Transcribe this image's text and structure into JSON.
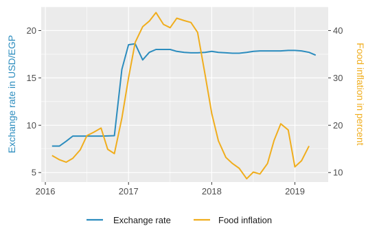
{
  "chart_data": {
    "type": "line",
    "xlim": [
      2015.95,
      2019.4
    ],
    "x_ticks": [
      2016,
      2017,
      2018,
      2019
    ],
    "x_tick_labels": [
      "2016",
      "2017",
      "2018",
      "2019"
    ],
    "y_left": {
      "label": "Exchange rate in USD/EGP",
      "ylim": [
        4,
        22.5
      ],
      "ticks": [
        5,
        10,
        15,
        20
      ],
      "tick_labels": [
        "5",
        "10",
        "15",
        "20"
      ]
    },
    "y_right": {
      "label": "Food inflation in percent",
      "ylim": [
        8,
        45
      ],
      "ticks": [
        10,
        20,
        30,
        40
      ],
      "tick_labels": [
        "10",
        "20",
        "30",
        "40"
      ]
    },
    "grid": true,
    "legend_position": "bottom",
    "series": [
      {
        "name": "Exchange rate",
        "axis": "left",
        "color": "#2b8cbe",
        "x": [
          2016.08,
          2016.17,
          2016.25,
          2016.33,
          2016.42,
          2016.5,
          2016.58,
          2016.67,
          2016.75,
          2016.83,
          2016.92,
          2017.0,
          2017.08,
          2017.17,
          2017.25,
          2017.33,
          2017.42,
          2017.5,
          2017.58,
          2017.67,
          2017.75,
          2017.83,
          2017.92,
          2018.0,
          2018.08,
          2018.17,
          2018.25,
          2018.33,
          2018.42,
          2018.5,
          2018.58,
          2018.67,
          2018.75,
          2018.83,
          2018.92,
          2019.0,
          2019.08,
          2019.17,
          2019.25
        ],
        "values": [
          7.8,
          7.8,
          8.3,
          8.85,
          8.85,
          8.85,
          8.85,
          8.85,
          8.87,
          8.9,
          15.9,
          18.5,
          18.6,
          16.9,
          17.7,
          18.0,
          18.0,
          18.0,
          17.8,
          17.7,
          17.65,
          17.65,
          17.7,
          17.8,
          17.7,
          17.65,
          17.6,
          17.6,
          17.7,
          17.8,
          17.85,
          17.85,
          17.85,
          17.85,
          17.9,
          17.9,
          17.85,
          17.7,
          17.4
        ]
      },
      {
        "name": "Food inflation",
        "axis": "right",
        "color": "#f0ad1c",
        "x": [
          2016.08,
          2016.17,
          2016.25,
          2016.33,
          2016.42,
          2016.5,
          2016.58,
          2016.67,
          2016.75,
          2016.83,
          2016.92,
          2017.0,
          2017.08,
          2017.17,
          2017.25,
          2017.33,
          2017.42,
          2017.5,
          2017.58,
          2017.67,
          2017.75,
          2017.83,
          2017.92,
          2018.0,
          2018.08,
          2018.17,
          2018.25,
          2018.33,
          2018.42,
          2018.5,
          2018.58,
          2018.67,
          2018.75,
          2018.83,
          2018.92,
          2019.0,
          2019.08,
          2019.17
        ],
        "values": [
          13.6,
          12.7,
          12.2,
          13.0,
          14.8,
          17.8,
          18.5,
          19.4,
          14.9,
          14.0,
          21.5,
          30.0,
          37.5,
          40.8,
          42.0,
          43.8,
          41.3,
          40.6,
          42.6,
          42.1,
          41.7,
          39.6,
          30.7,
          22.5,
          16.7,
          13.2,
          11.9,
          10.9,
          8.7,
          10.1,
          9.7,
          11.9,
          16.8,
          20.3,
          19.0,
          11.2,
          12.5,
          15.6
        ]
      }
    ]
  }
}
